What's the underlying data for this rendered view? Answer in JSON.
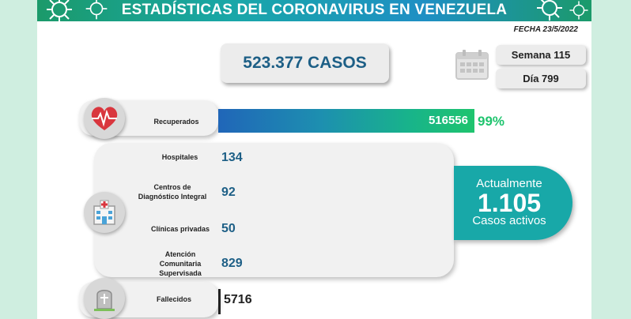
{
  "header": {
    "title": "ESTADÍSTICAS DEL CORONAVIRUS EN VENEZUELA"
  },
  "fecha": "FECHA 23/5/2022",
  "casos": "523.377 CASOS",
  "semana": "Semana 115",
  "dia": "Día 799",
  "recuperados": {
    "label": "Recuperados",
    "value": "516556",
    "percent": "99%",
    "fill": 0.99
  },
  "hospitalizados": [
    {
      "label": "Hospitales",
      "value": "134"
    },
    {
      "label": "Centros de Diagnóstico Integral",
      "value": "92"
    },
    {
      "label": "Clínicas privadas",
      "value": "50"
    },
    {
      "label": "Atención Comunitaria Supervisada",
      "value": "829"
    }
  ],
  "activos": {
    "top": "Actualmente",
    "number": "1.105",
    "bottom": "Casos activos"
  },
  "fallecidos": {
    "label": "Fallecidos",
    "value": "5716"
  },
  "colors": {
    "accent": "#1d5f86",
    "teal": "#18a8a8",
    "green": "#1fc46e"
  },
  "icons": [
    "virus-icon",
    "calendar-icon",
    "heart-pulse-icon",
    "hospital-icon",
    "tombstone-icon"
  ]
}
